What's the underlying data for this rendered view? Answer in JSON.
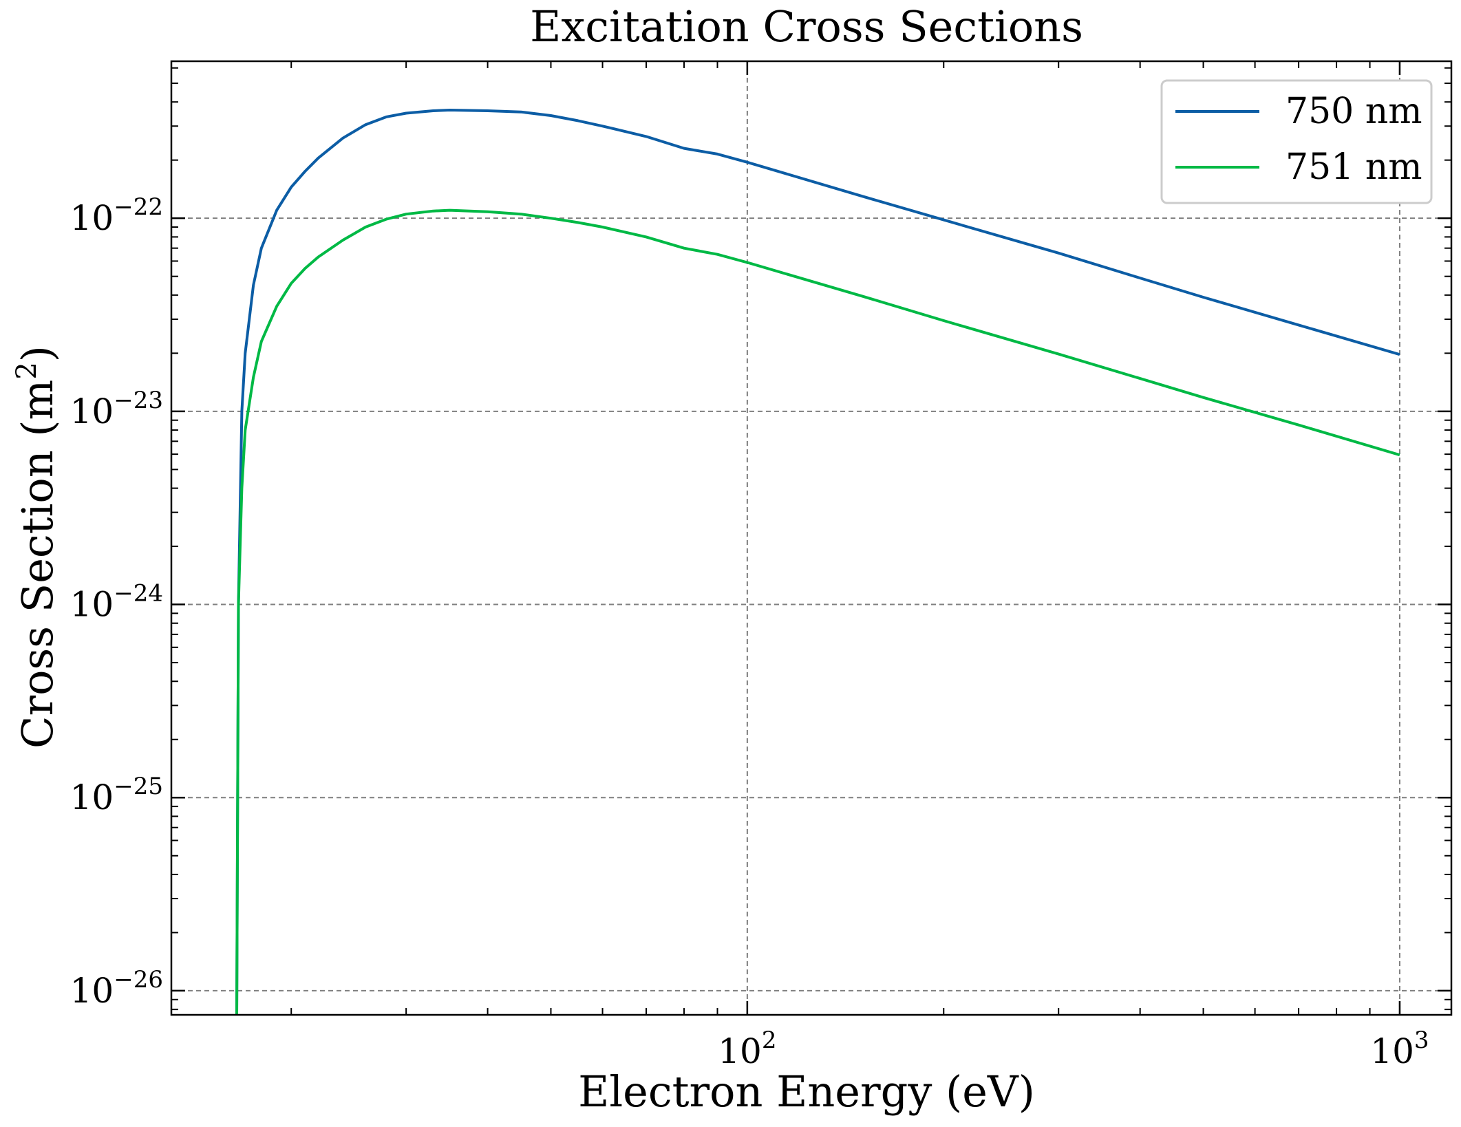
{
  "chart_data": {
    "type": "line",
    "title": "Excitation Cross Sections",
    "xlabel": "Electron Energy (eV)",
    "ylabel": "Cross Section (m",
    "ylabel_sup": "2",
    "ylabel_close": ")",
    "x_scale": "log",
    "y_scale": "log",
    "xlim": [
      13.1,
      1200
    ],
    "ylim": [
      7.5e-27,
      6.5e-22
    ],
    "x_ticks": [
      {
        "value": 100,
        "base": "10",
        "exp": "2"
      },
      {
        "value": 1000,
        "base": "10",
        "exp": "3"
      }
    ],
    "y_ticks": [
      {
        "value": 1e-22,
        "base": "10",
        "exp": "−22"
      },
      {
        "value": 1e-23,
        "base": "10",
        "exp": "−23"
      },
      {
        "value": 1e-24,
        "base": "10",
        "exp": "−24"
      },
      {
        "value": 1e-25,
        "base": "10",
        "exp": "−25"
      },
      {
        "value": 1e-26,
        "base": "10",
        "exp": "−26"
      }
    ],
    "grid": true,
    "legend_position": "top-right",
    "series": [
      {
        "name": "750 nm",
        "color": "#0C5DA5",
        "x": [
          16.5,
          16.6,
          16.8,
          17.0,
          17.5,
          18,
          19,
          20,
          21,
          22,
          24,
          26,
          28,
          30,
          33,
          35,
          40,
          45,
          50,
          55,
          60,
          70,
          80,
          90,
          100,
          150,
          200,
          300,
          400,
          500,
          700,
          1000
        ],
        "y": [
          7.5e-27,
          1e-24,
          1e-23,
          2e-23,
          4.5e-23,
          7e-23,
          1.1e-22,
          1.45e-22,
          1.75e-22,
          2.05e-22,
          2.6e-22,
          3.05e-22,
          3.35e-22,
          3.5e-22,
          3.6e-22,
          3.63e-22,
          3.6e-22,
          3.55e-22,
          3.4e-22,
          3.2e-22,
          3e-22,
          2.65e-22,
          2.3e-22,
          2.15e-22,
          1.95e-22,
          1.3e-22,
          9.8e-23,
          6.6e-23,
          4.9e-23,
          3.9e-23,
          2.8e-23,
          1.97e-23
        ]
      },
      {
        "name": "751 nm",
        "color": "#00B945",
        "x": [
          16.5,
          16.6,
          16.8,
          17.0,
          17.5,
          18,
          19,
          20,
          21,
          22,
          24,
          26,
          28,
          30,
          33,
          35,
          40,
          45,
          50,
          55,
          60,
          70,
          80,
          90,
          100,
          150,
          200,
          300,
          400,
          500,
          700,
          1000
        ],
        "y": [
          7.5e-27,
          1e-24,
          4e-24,
          8e-24,
          1.5e-23,
          2.3e-23,
          3.5e-23,
          4.6e-23,
          5.5e-23,
          6.3e-23,
          7.7e-23,
          9e-23,
          9.9e-23,
          1.05e-22,
          1.09e-22,
          1.1e-22,
          1.08e-22,
          1.05e-22,
          1e-22,
          9.5e-23,
          9e-23,
          8e-23,
          7e-23,
          6.5e-23,
          5.9e-23,
          3.95e-23,
          2.95e-23,
          1.98e-23,
          1.48e-23,
          1.18e-23,
          8.5e-24,
          5.95e-24
        ]
      }
    ]
  }
}
